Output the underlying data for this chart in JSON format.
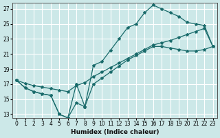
{
  "xlabel": "Humidex (Indice chaleur)",
  "bg_color": "#cce8e8",
  "grid_color": "#ffffff",
  "line_color": "#1a6b6b",
  "xlim": [
    -0.5,
    23.5
  ],
  "ylim": [
    12.5,
    27.8
  ],
  "xticks": [
    0,
    1,
    2,
    3,
    4,
    5,
    6,
    7,
    8,
    9,
    10,
    11,
    12,
    13,
    14,
    15,
    16,
    17,
    18,
    19,
    20,
    21,
    22,
    23
  ],
  "yticks": [
    13,
    15,
    17,
    19,
    21,
    23,
    25,
    27
  ],
  "curve1_x": [
    0,
    1,
    2,
    3,
    4,
    5,
    6,
    7,
    8,
    9,
    10,
    11,
    12,
    13,
    14,
    15,
    16,
    17,
    18,
    19,
    20,
    21,
    22,
    23
  ],
  "curve1_y": [
    17.5,
    16.5,
    16.0,
    15.7,
    15.5,
    13.0,
    12.5,
    17.0,
    14.0,
    19.5,
    20.0,
    21.5,
    23.0,
    24.5,
    25.0,
    26.5,
    27.5,
    27.0,
    26.5,
    26.0,
    25.2,
    25.0,
    24.8,
    22.0
  ],
  "curve2_x": [
    0,
    1,
    2,
    3,
    4,
    5,
    6,
    7,
    8,
    9,
    10,
    11,
    12,
    13,
    14,
    15,
    16,
    17,
    18,
    19,
    20,
    21,
    22,
    23
  ],
  "curve2_y": [
    17.5,
    17.1,
    16.8,
    16.6,
    16.4,
    16.2,
    16.0,
    16.8,
    17.2,
    18.0,
    18.6,
    19.2,
    19.8,
    20.4,
    21.0,
    21.6,
    22.2,
    22.5,
    22.8,
    23.2,
    23.6,
    24.0,
    24.4,
    22.0
  ],
  "curve3_x": [
    0,
    1,
    2,
    3,
    4,
    5,
    6,
    7,
    8,
    9,
    10,
    11,
    12,
    13,
    14,
    15,
    16,
    17,
    18,
    19,
    20,
    21,
    22,
    23
  ],
  "curve3_y": [
    17.5,
    16.5,
    16.0,
    15.7,
    15.5,
    13.0,
    12.5,
    14.5,
    14.0,
    17.0,
    17.8,
    18.6,
    19.4,
    20.2,
    20.8,
    21.4,
    22.0,
    22.0,
    21.8,
    21.6,
    21.4,
    21.4,
    21.6,
    22.0
  ]
}
